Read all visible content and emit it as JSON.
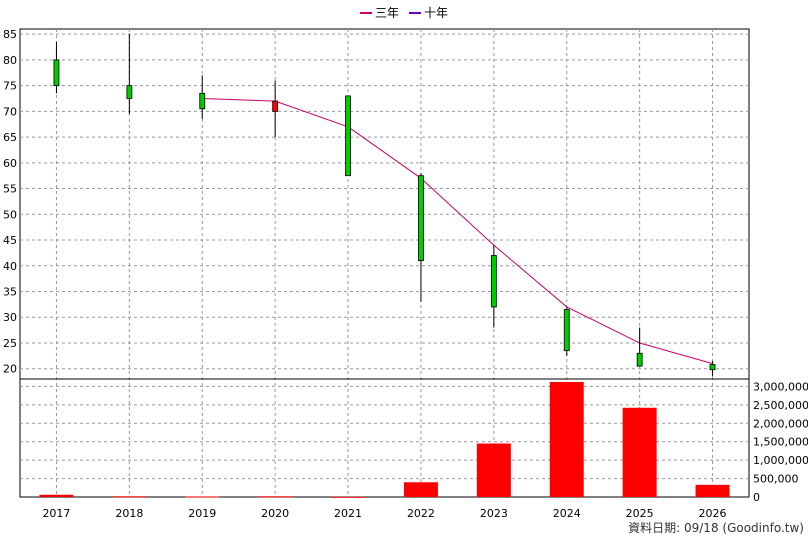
{
  "legend": {
    "ma3_label": "三年",
    "ma10_label": "十年",
    "ma3_color": "#cc0066",
    "ma10_color": "#6600cc"
  },
  "footer": {
    "date_text": "資料日期: 09/18  (Goodinfo.tw)"
  },
  "chart_data": [
    {
      "type": "candlestick",
      "title": "",
      "categories": [
        "2017",
        "2018",
        "2019",
        "2020",
        "2021",
        "2022",
        "2023",
        "2024",
        "2025",
        "2026"
      ],
      "ylim": [
        18,
        86
      ],
      "yticks": [
        20,
        25,
        30,
        35,
        40,
        45,
        50,
        55,
        60,
        65,
        70,
        75,
        80,
        85
      ],
      "grid": true,
      "candles": [
        {
          "x": "2017",
          "open": 75,
          "close": 80,
          "high": 83.5,
          "low": 73.5
        },
        {
          "x": "2018",
          "open": 72.5,
          "close": 75,
          "high": 85,
          "low": 69.5
        },
        {
          "x": "2019",
          "open": 70.5,
          "close": 73.5,
          "high": 77,
          "low": 68.5
        },
        {
          "x": "2020",
          "open": 72,
          "close": 70,
          "high": 76,
          "low": 65
        },
        {
          "x": "2021",
          "open": 57.5,
          "close": 73,
          "high": 73,
          "low": 57.5
        },
        {
          "x": "2022",
          "open": 41,
          "close": 57.5,
          "high": 58,
          "low": 33
        },
        {
          "x": "2023",
          "open": 32,
          "close": 42,
          "high": 44,
          "low": 28
        },
        {
          "x": "2024",
          "open": 23.5,
          "close": 31.5,
          "high": 32,
          "low": 22.5
        },
        {
          "x": "2025",
          "open": 20.5,
          "close": 23,
          "high": 28,
          "low": 20.5
        },
        {
          "x": "2026",
          "open": 19.8,
          "close": 20.8,
          "high": 21.5,
          "low": 18.5
        }
      ],
      "up_color": "#00cc00",
      "down_color": "#ff0000",
      "series": [
        {
          "name": "三年",
          "color": "#cc0066",
          "x": [
            "2019",
            "2020",
            "2021",
            "2022",
            "2023",
            "2024",
            "2025",
            "2026"
          ],
          "values": [
            72.5,
            72,
            67,
            57,
            44,
            32,
            25,
            21
          ]
        }
      ]
    },
    {
      "type": "bar",
      "title": "",
      "categories": [
        "2017",
        "2018",
        "2019",
        "2020",
        "2021",
        "2022",
        "2023",
        "2024",
        "2025",
        "2026"
      ],
      "values": [
        60000,
        20000,
        15000,
        20000,
        5000,
        400000,
        1450000,
        3120000,
        2420000,
        330000
      ],
      "ylim": [
        0,
        3200000
      ],
      "yticks": [
        0,
        500000,
        1000000,
        1500000,
        2000000,
        2500000,
        3000000
      ],
      "ytick_labels": [
        "0",
        "500,000",
        "1,000,000",
        "1,500,000",
        "2,000,000",
        "2,500,000",
        "3,000,000"
      ],
      "color": "#ff0000",
      "grid": true
    }
  ]
}
